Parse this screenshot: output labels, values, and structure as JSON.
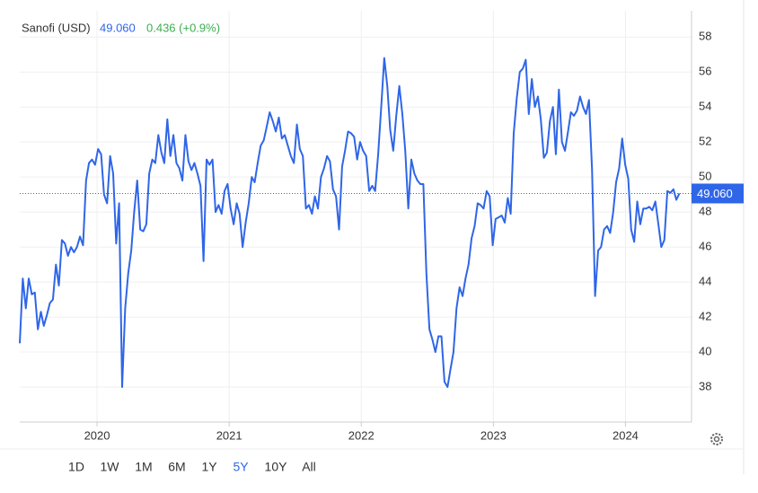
{
  "chart_data": {
    "type": "line",
    "title": "Sanofi (USD)",
    "price_label": "49.060",
    "change_label": "0.436 (+0.9%)",
    "xlim": [
      2019.415,
      2024.5
    ],
    "xticks": [
      2020,
      2021,
      2022,
      2023,
      2024
    ],
    "ylim": [
      36,
      59.5
    ],
    "yticks": [
      38,
      40,
      42,
      44,
      46,
      48,
      50,
      52,
      54,
      56,
      58
    ],
    "grid": true,
    "x": [
      2019.415,
      2019.438,
      2019.461,
      2019.483,
      2019.506,
      2019.529,
      2019.552,
      2019.575,
      2019.597,
      2019.62,
      2019.643,
      2019.666,
      2019.689,
      2019.711,
      2019.734,
      2019.757,
      2019.78,
      2019.803,
      2019.825,
      2019.848,
      2019.871,
      2019.894,
      2019.917,
      2019.939,
      2019.962,
      2019.985,
      2020.008,
      2020.031,
      2020.053,
      2020.076,
      2020.099,
      2020.122,
      2020.145,
      2020.167,
      2020.19,
      2020.213,
      2020.236,
      2020.259,
      2020.281,
      2020.304,
      2020.327,
      2020.35,
      2020.373,
      2020.395,
      2020.418,
      2020.441,
      2020.464,
      2020.487,
      2020.509,
      2020.532,
      2020.555,
      2020.578,
      2020.601,
      2020.623,
      2020.646,
      2020.669,
      2020.692,
      2020.715,
      2020.737,
      2020.76,
      2020.783,
      2020.806,
      2020.829,
      2020.851,
      2020.874,
      2020.897,
      2020.92,
      2020.943,
      2020.965,
      2020.988,
      2021.011,
      2021.034,
      2021.057,
      2021.079,
      2021.102,
      2021.125,
      2021.148,
      2021.171,
      2021.193,
      2021.216,
      2021.239,
      2021.262,
      2021.285,
      2021.307,
      2021.33,
      2021.353,
      2021.376,
      2021.399,
      2021.421,
      2021.444,
      2021.467,
      2021.49,
      2021.513,
      2021.535,
      2021.558,
      2021.581,
      2021.604,
      2021.627,
      2021.649,
      2021.672,
      2021.695,
      2021.718,
      2021.741,
      2021.763,
      2021.786,
      2021.809,
      2021.832,
      2021.855,
      2021.877,
      2021.9,
      2021.923,
      2021.946,
      2021.969,
      2021.991,
      2022.014,
      2022.037,
      2022.06,
      2022.083,
      2022.105,
      2022.128,
      2022.151,
      2022.174,
      2022.197,
      2022.219,
      2022.242,
      2022.265,
      2022.288,
      2022.311,
      2022.333,
      2022.356,
      2022.379,
      2022.402,
      2022.425,
      2022.447,
      2022.47,
      2022.493,
      2022.516,
      2022.539,
      2022.561,
      2022.584,
      2022.607,
      2022.63,
      2022.653,
      2022.675,
      2022.698,
      2022.721,
      2022.744,
      2022.767,
      2022.789,
      2022.812,
      2022.835,
      2022.858,
      2022.881,
      2022.903,
      2022.926,
      2022.949,
      2022.972,
      2022.995,
      2023.017,
      2023.04,
      2023.063,
      2023.086,
      2023.109,
      2023.131,
      2023.154,
      2023.177,
      2023.2,
      2023.223,
      2023.245,
      2023.268,
      2023.291,
      2023.314,
      2023.337,
      2023.359,
      2023.382,
      2023.405,
      2023.428,
      2023.451,
      2023.473,
      2023.496,
      2023.519,
      2023.542,
      2023.565,
      2023.587,
      2023.61,
      2023.633,
      2023.656,
      2023.679,
      2023.701,
      2023.724,
      2023.747,
      2023.77,
      2023.793,
      2023.815,
      2023.838,
      2023.861,
      2023.884,
      2023.907,
      2023.929,
      2023.952,
      2023.975,
      2023.998,
      2024.021,
      2024.043,
      2024.066,
      2024.089,
      2024.112,
      2024.135,
      2024.157,
      2024.18,
      2024.203,
      2024.226,
      2024.249,
      2024.271,
      2024.294,
      2024.317,
      2024.34,
      2024.363,
      2024.385,
      2024.408
    ],
    "series": [
      {
        "color": "#2f66e8",
        "values": [
          40.5,
          44.2,
          42.5,
          44.2,
          43.3,
          43.4,
          41.3,
          42.3,
          41.5,
          42.1,
          42.8,
          43.0,
          45.0,
          43.8,
          46.4,
          46.2,
          45.5,
          46.0,
          45.7,
          46.0,
          46.6,
          46.1,
          49.8,
          50.8,
          51.0,
          50.7,
          51.6,
          51.3,
          49.0,
          48.5,
          51.2,
          50.2,
          46.2,
          48.5,
          38.0,
          42.5,
          44.5,
          45.8,
          48.0,
          49.8,
          47.0,
          46.9,
          47.3,
          50.2,
          51.0,
          50.8,
          52.4,
          51.4,
          50.8,
          53.3,
          51.2,
          52.4,
          50.8,
          50.5,
          49.8,
          52.4,
          50.9,
          50.4,
          50.8,
          50.2,
          49.5,
          45.2,
          51.0,
          50.7,
          51.0,
          48.0,
          48.4,
          47.9,
          49.2,
          49.6,
          48.2,
          47.3,
          48.5,
          47.9,
          46.0,
          47.4,
          48.5,
          50.0,
          49.7,
          50.8,
          51.8,
          52.1,
          52.9,
          53.7,
          53.2,
          52.6,
          53.4,
          52.2,
          52.4,
          51.8,
          51.2,
          50.8,
          53.0,
          51.6,
          51.2,
          48.2,
          48.4,
          47.9,
          48.9,
          48.2,
          50.0,
          50.5,
          51.2,
          50.9,
          49.3,
          48.9,
          47.0,
          50.6,
          51.5,
          52.6,
          52.5,
          52.3,
          51.0,
          52.0,
          51.5,
          51.2,
          49.2,
          49.5,
          49.2,
          51.3,
          54.0,
          56.8,
          55.2,
          52.7,
          51.5,
          53.5,
          55.2,
          53.6,
          51.5,
          48.2,
          51.0,
          50.2,
          49.8,
          49.6,
          49.6,
          44.5,
          41.3,
          40.7,
          40.0,
          40.9,
          40.9,
          38.3,
          38.0,
          39.0,
          40.0,
          42.5,
          43.7,
          43.2,
          44.2,
          45.0,
          46.5,
          47.2,
          48.5,
          48.4,
          48.2,
          49.2,
          48.9,
          46.1,
          47.6,
          47.7,
          47.8,
          47.4,
          48.8,
          47.9,
          52.5,
          54.5,
          56.0,
          56.2,
          56.7,
          53.6,
          55.6,
          54.0,
          54.6,
          53.3,
          51.1,
          51.4,
          53.2,
          54.0,
          51.3,
          55.0,
          52.0,
          51.5,
          52.6,
          53.7,
          53.5,
          53.8,
          54.6,
          54.0,
          53.6,
          54.4,
          50.4,
          43.2,
          45.8,
          46.0,
          47.0,
          47.2,
          46.8,
          48.0,
          49.7,
          50.5,
          52.2,
          50.7,
          49.9,
          47.0,
          46.3,
          48.6,
          47.3,
          48.2,
          48.2,
          48.3,
          48.1,
          48.6,
          47.3,
          46.0,
          46.4,
          49.2,
          49.1,
          49.3,
          48.7,
          49.06
        ]
      }
    ],
    "range_buttons": [
      "1D",
      "1W",
      "1M",
      "6M",
      "1Y",
      "5Y",
      "10Y",
      "All"
    ],
    "active_range": "5Y"
  }
}
